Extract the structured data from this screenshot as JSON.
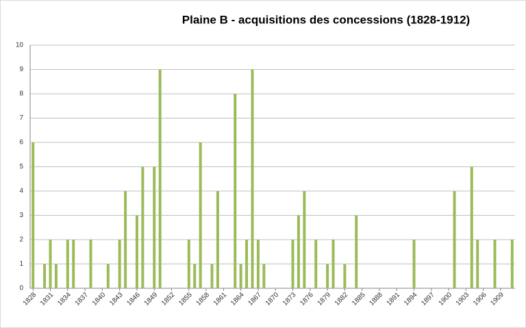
{
  "chart_data": {
    "type": "bar",
    "title": "Plaine B - acquisitions des concessions (1828-1912)",
    "categories": [
      "1828",
      null,
      null,
      "1831",
      null,
      null,
      "1834",
      null,
      null,
      "1837",
      null,
      null,
      "1840",
      null,
      null,
      "1843",
      null,
      null,
      "1846",
      null,
      null,
      "1849",
      null,
      null,
      "1852",
      null,
      null,
      "1855",
      null,
      null,
      "1858",
      null,
      null,
      "1861",
      null,
      null,
      "1864",
      null,
      null,
      "1867",
      null,
      null,
      "1870",
      null,
      null,
      "1873",
      null,
      null,
      "1876",
      null,
      null,
      "1879",
      null,
      null,
      "1882",
      null,
      null,
      "1885",
      null,
      null,
      "1888",
      null,
      null,
      "1891",
      null,
      null,
      "1894",
      null,
      null,
      "1897",
      null,
      null,
      "1900",
      null,
      null,
      "1903",
      null,
      null,
      "1906",
      null,
      null,
      "1909",
      null,
      null
    ],
    "values": [
      6,
      0,
      1,
      2,
      1,
      0,
      2,
      2,
      0,
      0,
      2,
      0,
      0,
      1,
      0,
      2,
      4,
      0,
      3,
      5,
      0,
      5,
      9,
      0,
      0,
      0,
      0,
      2,
      1,
      6,
      0,
      1,
      4,
      0,
      0,
      8,
      1,
      2,
      9,
      2,
      1,
      0,
      0,
      0,
      0,
      2,
      3,
      4,
      0,
      2,
      0,
      1,
      2,
      0,
      1,
      0,
      3,
      0,
      0,
      0,
      0,
      0,
      0,
      0,
      0,
      0,
      2,
      0,
      0,
      0,
      0,
      0,
      0,
      4,
      0,
      0,
      5,
      2,
      0,
      0,
      2,
      0,
      0,
      2
    ],
    "color": "#9bbb59",
    "ylim": [
      0,
      10
    ],
    "yticks": [
      0,
      1,
      2,
      3,
      4,
      5,
      6,
      7,
      8,
      9,
      10
    ],
    "grid": true
  }
}
